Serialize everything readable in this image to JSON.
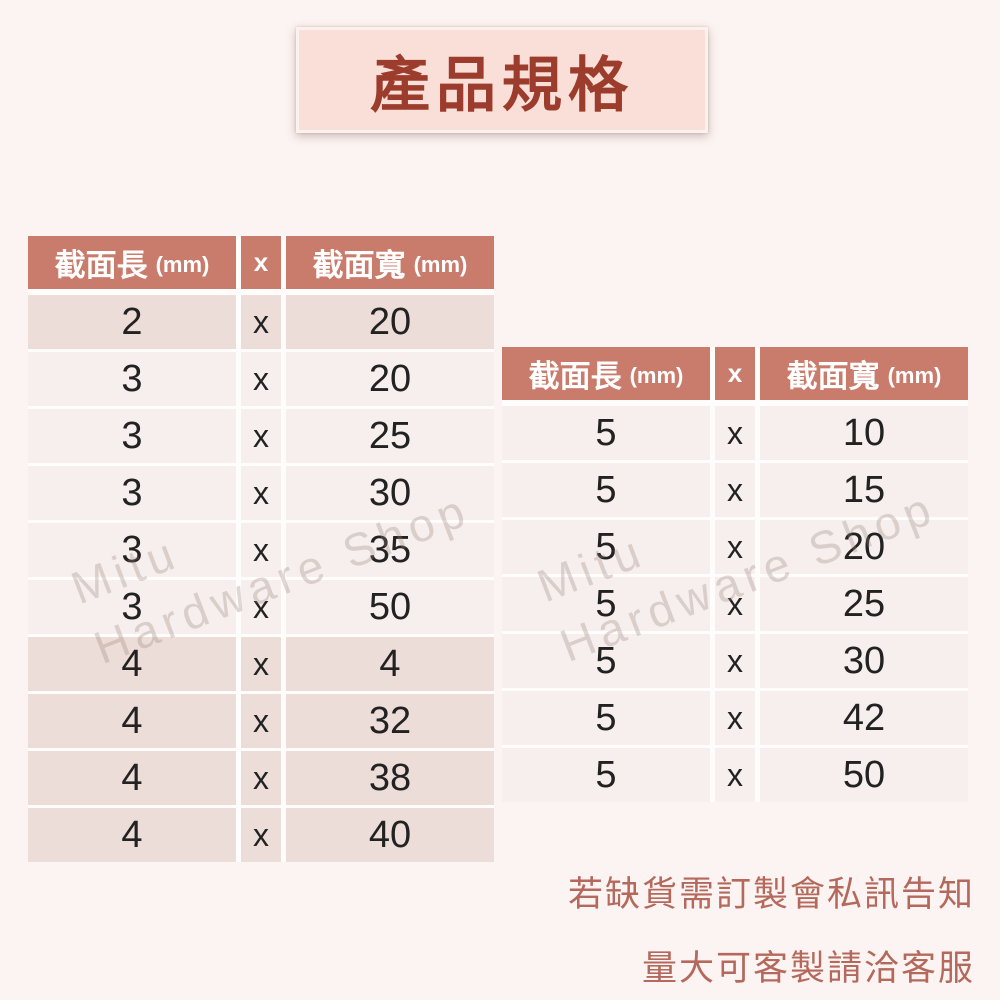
{
  "title": {
    "text": "產品規格"
  },
  "tables": [
    {
      "header": {
        "length_label": "截面長",
        "length_unit": "(mm)",
        "x_label": "x",
        "width_label": "截面寬",
        "width_unit": "(mm)"
      },
      "rows": [
        {
          "l": "2",
          "x": "x",
          "w": "20"
        },
        {
          "l": "3",
          "x": "x",
          "w": "20"
        },
        {
          "l": "3",
          "x": "x",
          "w": "25"
        },
        {
          "l": "3",
          "x": "x",
          "w": "30"
        },
        {
          "l": "3",
          "x": "x",
          "w": "35"
        },
        {
          "l": "3",
          "x": "x",
          "w": "50"
        },
        {
          "l": "4",
          "x": "x",
          "w": "4"
        },
        {
          "l": "4",
          "x": "x",
          "w": "32"
        },
        {
          "l": "4",
          "x": "x",
          "w": "38"
        },
        {
          "l": "4",
          "x": "x",
          "w": "40"
        }
      ]
    },
    {
      "header": {
        "length_label": "截面長",
        "length_unit": "(mm)",
        "x_label": "x",
        "width_label": "截面寬",
        "width_unit": "(mm)"
      },
      "rows": [
        {
          "l": "5",
          "x": "x",
          "w": "10"
        },
        {
          "l": "5",
          "x": "x",
          "w": "15"
        },
        {
          "l": "5",
          "x": "x",
          "w": "20"
        },
        {
          "l": "5",
          "x": "x",
          "w": "25"
        },
        {
          "l": "5",
          "x": "x",
          "w": "30"
        },
        {
          "l": "5",
          "x": "x",
          "w": "42"
        },
        {
          "l": "5",
          "x": "x",
          "w": "50"
        }
      ]
    }
  ],
  "watermark": {
    "line1": "Mitu",
    "line2": "Hardware Shop"
  },
  "notes": {
    "line1": "若缺貨需訂製會私訊告知",
    "line2": "量大可客製請洽客服"
  },
  "colors": {
    "page-bg": "#FCF4F2",
    "banner-bg": "#F9DFD8",
    "title-text": "#9C3C2D",
    "header-bg": "#C97C6C",
    "header-text": "#FFFFFF",
    "row-light": "#F6EFED",
    "row-dark": "#ECDDD9",
    "cell-text": "#222222",
    "gap": "#FFFDFC",
    "note-text": "#B4695C"
  }
}
